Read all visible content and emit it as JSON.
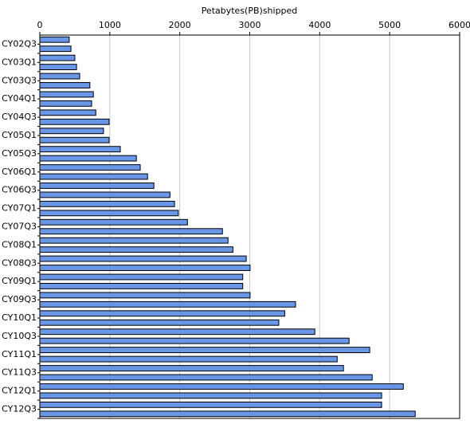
{
  "chart_data": {
    "type": "barh",
    "title": "Petabytes(PB)shipped",
    "categories": [
      "CY02Q3",
      null,
      "CY03Q1",
      null,
      "CY03Q3",
      null,
      "CY04Q1",
      null,
      "CY04Q3",
      null,
      "CY05Q1",
      null,
      "CY05Q3",
      null,
      "CY06Q1",
      null,
      "CY06Q3",
      null,
      "CY07Q1",
      null,
      "CY07Q3",
      null,
      "CY08Q1",
      null,
      "CY08Q3",
      null,
      "CY09Q1",
      null,
      "CY09Q3",
      null,
      "CY10Q1",
      null,
      "CY10Q3",
      null,
      "CY11Q1",
      null,
      "CY11Q3",
      null,
      "CY12Q1",
      null,
      "CY12Q3",
      null
    ],
    "values": [
      420,
      445,
      500,
      525,
      570,
      715,
      765,
      740,
      800,
      990,
      910,
      990,
      1150,
      1380,
      1435,
      1540,
      1630,
      1860,
      1925,
      1980,
      2110,
      2610,
      2690,
      2760,
      2950,
      3005,
      2900,
      2900,
      3005,
      3655,
      3500,
      3415,
      3930,
      4420,
      4715,
      4250,
      4340,
      4750,
      5195,
      4885,
      4885,
      5365
    ],
    "color": "#6a96e6",
    "xlim": [
      0,
      6000
    ],
    "xticks": [
      0,
      1000,
      2000,
      3000,
      4000,
      5000,
      6000
    ],
    "grid": true
  }
}
